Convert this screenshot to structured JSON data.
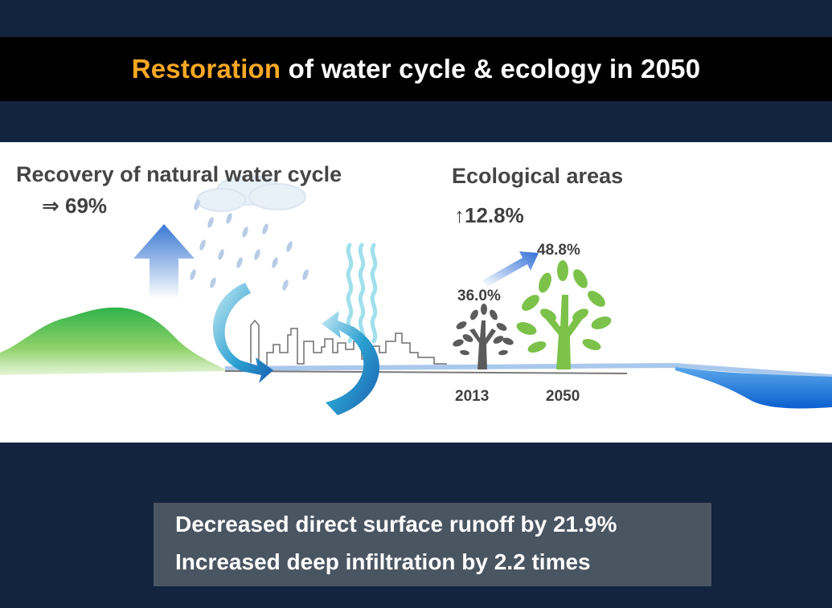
{
  "title": {
    "highlight": "Restoration",
    "rest": " of water cycle & ecology in 2050",
    "highlight_color": "#f7a823"
  },
  "water_cycle": {
    "label": "Recovery of natural water cycle",
    "value": "⇒ 69%"
  },
  "ecology": {
    "label": "Ecological areas",
    "change": "↑12.8%",
    "before_value": "36.0%",
    "after_value": "48.8%",
    "before_year": "2013",
    "after_year": "2050"
  },
  "summary": {
    "line1": "Decreased direct surface runoff by 21.9%",
    "line2": "Increased deep infiltration by 2.2 times"
  },
  "icons": [
    "rain-cloud-icon",
    "up-arrow-icon",
    "cycle-arrows-icon",
    "heat-wave-icon",
    "small-tree-icon",
    "large-tree-icon",
    "growth-arrow-icon"
  ]
}
